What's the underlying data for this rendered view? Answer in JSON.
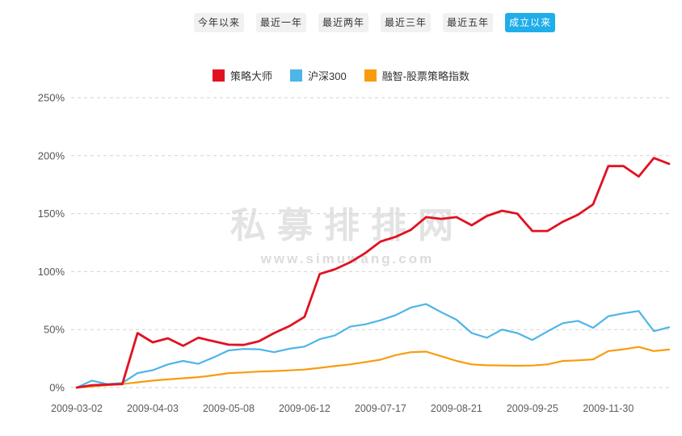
{
  "tabs": {
    "items": [
      {
        "label": "今年以来",
        "active": false
      },
      {
        "label": "最近一年",
        "active": false
      },
      {
        "label": "最近两年",
        "active": false
      },
      {
        "label": "最近三年",
        "active": false
      },
      {
        "label": "最近五年",
        "active": false
      },
      {
        "label": "成立以来",
        "active": true
      }
    ],
    "active_bg": "#1faee9",
    "inactive_bg": "#f1f1f1"
  },
  "legend": {
    "items": [
      {
        "label": "策略大师",
        "color": "#e01222"
      },
      {
        "label": "沪深300",
        "color": "#4db5e8"
      },
      {
        "label": "融智-股票策略指数",
        "color": "#f89c0e"
      }
    ]
  },
  "watermark": {
    "title": "私募排排网",
    "url": "www.simuwang.com"
  },
  "chart_data": {
    "type": "line",
    "title": "",
    "xlabel": "",
    "ylabel": "",
    "ylim": [
      0,
      250
    ],
    "y_ticks": [
      "0%",
      "50%",
      "100%",
      "150%",
      "200%",
      "250%"
    ],
    "y_tick_values": [
      0,
      50,
      100,
      150,
      200,
      250
    ],
    "grid": "horizontal dashed",
    "legend_position": "top-center",
    "x_tick_labels": [
      "2009-03-02",
      "2009-04-03",
      "2009-05-08",
      "2009-06-12",
      "2009-07-17",
      "2009-08-21",
      "2009-09-25",
      "2009-11-30"
    ],
    "x_tick_indices": [
      0,
      5,
      10,
      15,
      20,
      25,
      30,
      35
    ],
    "x_point_count": 40,
    "unit": "percent",
    "series": [
      {
        "name": "策略大师",
        "color": "#e01222",
        "values": [
          0,
          2,
          2.5,
          3,
          47,
          39,
          42.5,
          36,
          43,
          40,
          37,
          36.8,
          40,
          47,
          53,
          61,
          98,
          102,
          108,
          116,
          126,
          130,
          136,
          147,
          145.5,
          147,
          140,
          148,
          152.5,
          150,
          135,
          135,
          143,
          149,
          158,
          191,
          191,
          182,
          198,
          193
        ]
      },
      {
        "name": "沪深300",
        "color": "#4db5e8",
        "values": [
          0,
          6,
          3,
          4,
          12.5,
          15,
          20,
          23,
          20.5,
          26,
          32,
          33.3,
          33,
          30.5,
          33.5,
          35.3,
          41.7,
          45,
          52.5,
          54.5,
          58,
          62.5,
          69,
          72,
          65,
          58.5,
          47,
          43,
          50,
          47,
          41,
          48.5,
          55.5,
          57.5,
          51.5,
          61.5,
          64,
          66,
          48.6,
          52
        ]
      },
      {
        "name": "融智-股票策略指数",
        "color": "#f89c0e",
        "values": [
          0,
          1,
          2,
          3,
          4.5,
          6,
          7,
          8,
          9,
          10.5,
          12.5,
          13,
          13.8,
          14.2,
          14.8,
          15.5,
          17,
          18.5,
          20,
          22,
          24,
          28,
          30.5,
          31,
          27,
          23,
          20,
          19.2,
          19,
          18.8,
          19,
          20,
          22.9,
          23.5,
          24.3,
          31.5,
          33,
          35,
          31.5,
          32.8
        ]
      }
    ]
  }
}
